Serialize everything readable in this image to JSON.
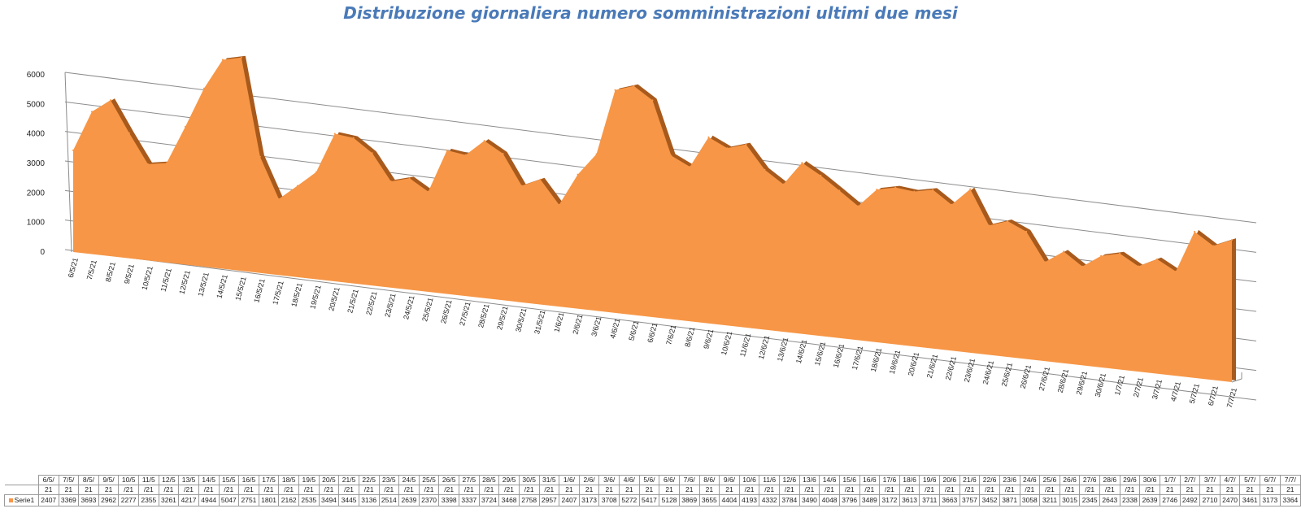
{
  "chart_data": {
    "type": "area",
    "title": "Distribuzione giornaliera numero somministrazioni ultimi due mesi",
    "y_ticks": [
      "0",
      "1000",
      "2000",
      "3000",
      "4000",
      "5000",
      "6000"
    ],
    "ylim": [
      0,
      6000
    ],
    "grid": true,
    "color": "#f79646",
    "categories": [
      "6/5/21",
      "7/5/21",
      "8/5/21",
      "9/5/21",
      "10/5/21",
      "11/5/21",
      "12/5/21",
      "13/5/21",
      "14/5/21",
      "15/5/21",
      "16/5/21",
      "17/5/21",
      "18/5/21",
      "19/5/21",
      "20/5/21",
      "21/5/21",
      "22/5/21",
      "23/5/21",
      "24/5/21",
      "25/5/21",
      "26/5/21",
      "27/5/21",
      "28/5/21",
      "29/5/21",
      "30/5/21",
      "31/5/21",
      "1/6/21",
      "2/6/21",
      "3/6/21",
      "4/6/21",
      "5/6/21",
      "6/6/21",
      "7/6/21",
      "8/6/21",
      "9/6/21",
      "10/6/21",
      "11/6/21",
      "12/6/21",
      "13/6/21",
      "14/6/21",
      "15/6/21",
      "16/6/21",
      "17/6/21",
      "18/6/21",
      "19/6/21",
      "20/6/21",
      "21/6/21",
      "22/6/21",
      "23/6/21",
      "24/6/21",
      "25/6/21",
      "26/6/21",
      "27/6/21",
      "28/6/21",
      "29/6/21",
      "30/6/21",
      "1/7/21",
      "2/7/21",
      "3/7/21",
      "4/7/21",
      "5/7/21",
      "6/7/21",
      "7/7/21"
    ],
    "table_headers": [
      [
        "6/5/",
        "21"
      ],
      [
        "7/5/",
        "21"
      ],
      [
        "8/5/",
        "21"
      ],
      [
        "9/5/",
        "21"
      ],
      [
        "10/5",
        "/21"
      ],
      [
        "11/5",
        "/21"
      ],
      [
        "12/5",
        "/21"
      ],
      [
        "13/5",
        "/21"
      ],
      [
        "14/5",
        "/21"
      ],
      [
        "15/5",
        "/21"
      ],
      [
        "16/5",
        "/21"
      ],
      [
        "17/5",
        "/21"
      ],
      [
        "18/5",
        "/21"
      ],
      [
        "19/5",
        "/21"
      ],
      [
        "20/5",
        "/21"
      ],
      [
        "21/5",
        "/21"
      ],
      [
        "22/5",
        "/21"
      ],
      [
        "23/5",
        "/21"
      ],
      [
        "24/5",
        "/21"
      ],
      [
        "25/5",
        "/21"
      ],
      [
        "26/5",
        "/21"
      ],
      [
        "27/5",
        "/21"
      ],
      [
        "28/5",
        "/21"
      ],
      [
        "29/5",
        "/21"
      ],
      [
        "30/5",
        "/21"
      ],
      [
        "31/5",
        "/21"
      ],
      [
        "1/6/",
        "21"
      ],
      [
        "2/6/",
        "21"
      ],
      [
        "3/6/",
        "21"
      ],
      [
        "4/6/",
        "21"
      ],
      [
        "5/6/",
        "21"
      ],
      [
        "6/6/",
        "21"
      ],
      [
        "7/6/",
        "21"
      ],
      [
        "8/6/",
        "21"
      ],
      [
        "9/6/",
        "21"
      ],
      [
        "10/6",
        "/21"
      ],
      [
        "11/6",
        "/21"
      ],
      [
        "12/6",
        "/21"
      ],
      [
        "13/6",
        "/21"
      ],
      [
        "14/6",
        "/21"
      ],
      [
        "15/6",
        "/21"
      ],
      [
        "16/6",
        "/21"
      ],
      [
        "17/6",
        "/21"
      ],
      [
        "18/6",
        "/21"
      ],
      [
        "19/6",
        "/21"
      ],
      [
        "20/6",
        "/21"
      ],
      [
        "21/6",
        "/21"
      ],
      [
        "22/6",
        "/21"
      ],
      [
        "23/6",
        "/21"
      ],
      [
        "24/6",
        "/21"
      ],
      [
        "25/6",
        "/21"
      ],
      [
        "26/6",
        "/21"
      ],
      [
        "27/6",
        "/21"
      ],
      [
        "28/6",
        "/21"
      ],
      [
        "29/6",
        "/21"
      ],
      [
        "30/6",
        "/21"
      ],
      [
        "1/7/",
        "21"
      ],
      [
        "2/7/",
        "21"
      ],
      [
        "3/7/",
        "21"
      ],
      [
        "4/7/",
        "21"
      ],
      [
        "5/7/",
        "21"
      ],
      [
        "6/7/",
        "21"
      ],
      [
        "7/7/",
        "21"
      ]
    ],
    "series": [
      {
        "name": "Serie1",
        "values": [
          2407,
          3369,
          3693,
          2962,
          2277,
          2355,
          3261,
          4217,
          4944,
          5047,
          2751,
          1801,
          2162,
          2535,
          3494,
          3445,
          3136,
          2514,
          2639,
          2370,
          3398,
          3337,
          3724,
          3468,
          2758,
          2957,
          2407,
          3173,
          3708,
          5272,
          5417,
          5128,
          3869,
          3655,
          4404,
          4193,
          4332,
          3784,
          3490,
          4048,
          3796,
          3489,
          3172,
          3613,
          3711,
          3663,
          3757,
          3452,
          3871,
          3058,
          3211,
          3015,
          2345,
          2643,
          2338,
          2639,
          2746,
          2492,
          2710,
          2470,
          3461,
          3173,
          3364
        ]
      }
    ]
  }
}
